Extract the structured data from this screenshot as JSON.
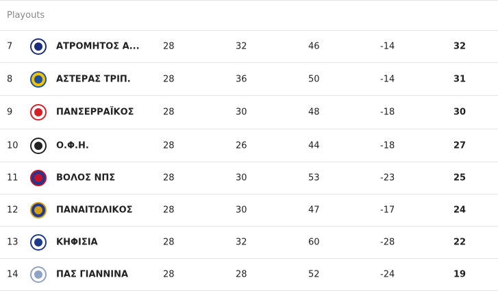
{
  "section": "Playouts",
  "table": {
    "rows": [
      [
        7,
        "ΑΤΡΟΜΗΤΟΣ Α...",
        28,
        32,
        46,
        -14,
        32
      ],
      [
        8,
        "ΑΣΤΕΡΑΣ ΤΡΙΠ.",
        28,
        36,
        50,
        -14,
        31
      ],
      [
        9,
        "ΠΑΝΣΕΡΡΑΪΚΟΣ",
        28,
        30,
        48,
        -18,
        30
      ],
      [
        10,
        "Ο.Φ.Η.",
        28,
        26,
        44,
        -18,
        27
      ],
      [
        11,
        "ΒΟΛΟΣ ΝΠΣ",
        28,
        30,
        53,
        -23,
        25
      ],
      [
        12,
        "ΠΑΝΑΙΤΩΛΙΚΟΣ",
        28,
        30,
        47,
        -17,
        24
      ],
      [
        13,
        "ΚΗΦΙΣΙΑ",
        28,
        32,
        60,
        -28,
        22
      ],
      [
        14,
        "ΠΑΣ ΓΙΑΝΝΙΝΑ",
        28,
        28,
        52,
        -24,
        19
      ]
    ]
  }
}
